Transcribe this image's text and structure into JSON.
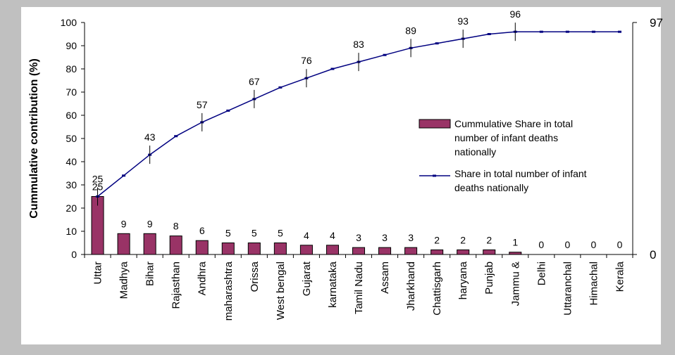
{
  "chart_data": {
    "type": "bar",
    "ylabel": "Cummulative contribution (%)",
    "ylim": [
      0,
      100
    ],
    "yticks": [
      0,
      10,
      20,
      30,
      40,
      50,
      60,
      70,
      80,
      90,
      100
    ],
    "y2ticks": [
      0,
      97
    ],
    "categories": [
      "Uttar",
      "Madhya",
      "Bihar",
      "Rajasthan",
      "Andhra",
      "maharashtra",
      "Orissa",
      "West bengal",
      "Gujarat",
      "karnataka",
      "Tamil Nadu",
      "Assam",
      "Jharkhand",
      "Chattisgarh",
      "haryana",
      "Punjab",
      "Jammu &",
      "Delhi",
      "Uttaranchal",
      "Himachal",
      "Kerala"
    ],
    "series": [
      {
        "name": "Share in total number of infant deaths nationally",
        "kind": "bar",
        "color": "#993366",
        "values": [
          25,
          9,
          9,
          8,
          6,
          5,
          5,
          5,
          4,
          4,
          3,
          3,
          3,
          2,
          2,
          2,
          1,
          0,
          0,
          0,
          0
        ]
      },
      {
        "name": "Cummulative Share in total number of infant deaths nationally",
        "kind": "line",
        "color": "#000080",
        "values": [
          25,
          34,
          43,
          51,
          57,
          62,
          67,
          72,
          76,
          80,
          83,
          86,
          89,
          91,
          93,
          95,
          96,
          96,
          96,
          96,
          96
        ]
      }
    ],
    "line_labels": [
      {
        "index": 0,
        "text": "25"
      },
      {
        "index": 2,
        "text": "43"
      },
      {
        "index": 4,
        "text": "57"
      },
      {
        "index": 6,
        "text": "67"
      },
      {
        "index": 8,
        "text": "76"
      },
      {
        "index": 10,
        "text": "83"
      },
      {
        "index": 12,
        "text": "89"
      },
      {
        "index": 14,
        "text": "93"
      },
      {
        "index": 16,
        "text": "96"
      }
    ],
    "legend": {
      "placement": "right",
      "items": [
        {
          "label": "Cummulative Share in total number of infant deaths nationally",
          "marker": "bar"
        },
        {
          "label": "Share in total number of infant deaths nationally",
          "marker": "line"
        }
      ]
    },
    "colors": {
      "background": "#c0c0c0",
      "plot_area": "#ffffff",
      "bar": "#993366",
      "line": "#000080"
    },
    "grid": false
  }
}
